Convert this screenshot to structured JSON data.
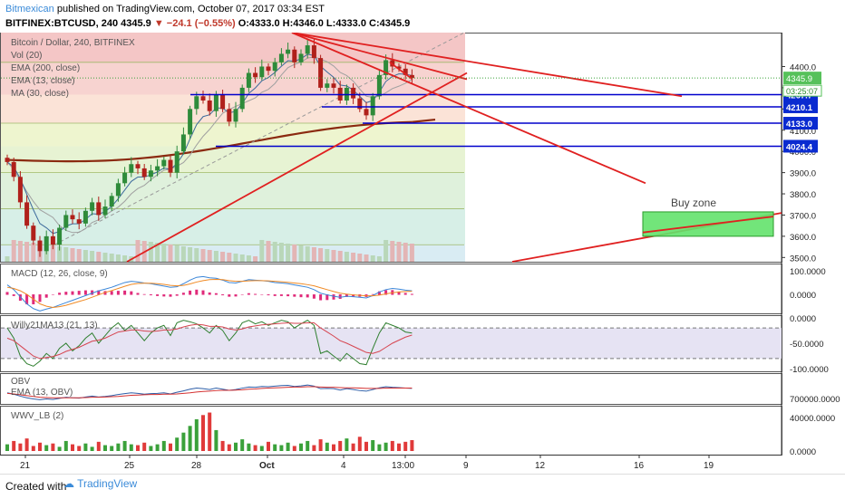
{
  "header": {
    "publisher": "Bitmexican",
    "published_text": "published on TradingView.com, October 07, 2017 03:34 EST",
    "symbol_line_prefix": "BITFINEX:BTCUSD, 240",
    "last": "4345.9",
    "change": "▼ −24.1 (−0.55%)",
    "ohlc": "O:4333.0 H:4346.0 L:4333.0 C:4345.9"
  },
  "footer": {
    "created_with": "Created with",
    "brand": "TradingView"
  },
  "colors": {
    "up": "#2e8b3a",
    "down": "#b0201b",
    "ema200": "#8b2a10",
    "ema13": "#3d6b9c",
    "ma30": "#a0a0a0",
    "trend": "#e02020",
    "level": "#0000cc",
    "buyzone": "#63e26b",
    "macd": "#3b86d8",
    "signal": "#f08a24",
    "willy": "#2f7f2f",
    "willy_ma": "#d64550",
    "obv": "#2f5fa8",
    "obv_ema": "#d43030"
  },
  "chart_data": [
    {
      "type": "candlestick",
      "panel": "price",
      "title": "Bitcoin / Dollar, 240, BITFINEX",
      "indicators": [
        "Vol (20)",
        "EMA (200, close)",
        "EMA (13, close)",
        "MA (30, close)"
      ],
      "y_ticks": [
        3500.0,
        3600.0,
        3700.0,
        3800.0,
        3900.0,
        4000.0,
        4100.0,
        4200.0,
        4300.0,
        4400.0
      ],
      "ylim": [
        3480,
        4560
      ],
      "x_ticks": [
        "21",
        "25",
        "28",
        "Oct",
        "4",
        "13:00",
        "9",
        "12",
        "16",
        "19"
      ],
      "last_price": 4345.9,
      "countdown": "03:25:07",
      "levels": [
        {
          "value": 4267.7,
          "label": "4267.7"
        },
        {
          "value": 4210.1,
          "label": "4210.1"
        },
        {
          "value": 4133.0,
          "label": "4133.0"
        },
        {
          "value": 4024.4,
          "label": "4024.4"
        }
      ],
      "annotation": "Buy zone",
      "buy_zone": {
        "low": 3600,
        "high": 3715
      },
      "closes": [
        3950,
        3880,
        3760,
        3650,
        3580,
        3530,
        3600,
        3560,
        3640,
        3700,
        3680,
        3660,
        3720,
        3760,
        3700,
        3740,
        3790,
        3850,
        3900,
        3940,
        3920,
        3880,
        3910,
        3930,
        3960,
        3900,
        4000,
        4080,
        4200,
        4260,
        4240,
        4190,
        4270,
        4200,
        4140,
        4200,
        4300,
        4370,
        4350,
        4400,
        4380,
        4420,
        4460,
        4480,
        4420,
        4460,
        4500,
        4440,
        4300,
        4320,
        4300,
        4240,
        4300,
        4250,
        4200,
        4170,
        4260,
        4360,
        4430,
        4400,
        4390,
        4360,
        4345.9
      ]
    },
    {
      "type": "line",
      "panel": "macd",
      "title": "MACD (12, 26, close, 9)",
      "y_ticks": [
        100.0,
        0.0
      ],
      "ylim": [
        -80,
        130
      ],
      "series": [
        {
          "name": "macd",
          "values": [
            40,
            20,
            -10,
            -40,
            -60,
            -70,
            -62,
            -55,
            -45,
            -35,
            -25,
            -15,
            -5,
            5,
            15,
            22,
            30,
            40,
            50,
            55,
            52,
            48,
            45,
            40,
            35,
            30,
            32,
            45,
            60,
            72,
            75,
            70,
            68,
            60,
            50,
            48,
            55,
            62,
            60,
            58,
            55,
            50,
            48,
            45,
            40,
            35,
            30,
            20,
            5,
            -2,
            -8,
            -12,
            -8,
            -10,
            -12,
            -15,
            -5,
            10,
            20,
            25,
            22,
            18,
            15
          ]
        },
        {
          "name": "signal",
          "values": [
            30,
            25,
            15,
            0,
            -20,
            -40,
            -50,
            -55,
            -52,
            -46,
            -38,
            -30,
            -22,
            -12,
            -2,
            8,
            16,
            25,
            34,
            42,
            46,
            47,
            47,
            45,
            42,
            38,
            36,
            38,
            44,
            52,
            58,
            62,
            63,
            62,
            58,
            55,
            55,
            57,
            58,
            58,
            57,
            55,
            53,
            51,
            48,
            45,
            41,
            36,
            28,
            20,
            12,
            5,
            1,
            -2,
            -4,
            -6,
            -6,
            -3,
            2,
            7,
            10,
            12,
            13
          ]
        }
      ]
    },
    {
      "type": "line",
      "panel": "willy",
      "title": "Willy21MA13 (21, 13)",
      "y_ticks": [
        0.0,
        -50.0,
        -100.0
      ],
      "ylim": [
        -105,
        5
      ],
      "series": [
        {
          "name": "willy",
          "values": [
            -20,
            -40,
            -75,
            -90,
            -95,
            -85,
            -70,
            -80,
            -60,
            -50,
            -65,
            -55,
            -40,
            -30,
            -50,
            -35,
            -20,
            -10,
            -25,
            -15,
            -30,
            -45,
            -30,
            -20,
            -15,
            -35,
            -10,
            -5,
            -8,
            -12,
            -20,
            -30,
            -15,
            -25,
            -45,
            -30,
            -10,
            -5,
            -12,
            -8,
            -15,
            -10,
            -5,
            -8,
            -20,
            -12,
            -5,
            -15,
            -70,
            -65,
            -75,
            -85,
            -70,
            -80,
            -90,
            -92,
            -60,
            -30,
            -10,
            -15,
            -20,
            -28,
            -30
          ]
        },
        {
          "name": "willy_ma",
          "values": [
            -40,
            -45,
            -55,
            -65,
            -75,
            -80,
            -78,
            -76,
            -72,
            -66,
            -62,
            -58,
            -52,
            -46,
            -44,
            -40,
            -34,
            -28,
            -26,
            -24,
            -24,
            -26,
            -27,
            -26,
            -24,
            -24,
            -22,
            -18,
            -15,
            -13,
            -14,
            -17,
            -17,
            -18,
            -22,
            -24,
            -22,
            -18,
            -16,
            -14,
            -13,
            -12,
            -11,
            -10,
            -11,
            -11,
            -10,
            -10,
            -20,
            -28,
            -36,
            -45,
            -50,
            -56,
            -62,
            -68,
            -70,
            -66,
            -58,
            -50,
            -44,
            -38,
            -34
          ]
        }
      ]
    },
    {
      "type": "line",
      "panel": "obv",
      "title": "OBV",
      "subtitle": "EMA (13, OBV)",
      "y_ticks": [
        700000.0
      ],
      "series": [
        {
          "name": "obv",
          "values": [
            0.4,
            0.35,
            0.28,
            0.22,
            0.18,
            0.15,
            0.18,
            0.16,
            0.2,
            0.24,
            0.22,
            0.21,
            0.25,
            0.28,
            0.25,
            0.27,
            0.3,
            0.34,
            0.37,
            0.4,
            0.38,
            0.35,
            0.37,
            0.38,
            0.4,
            0.36,
            0.42,
            0.47,
            0.53,
            0.57,
            0.55,
            0.52,
            0.57,
            0.53,
            0.49,
            0.52,
            0.57,
            0.61,
            0.6,
            0.63,
            0.62,
            0.64,
            0.66,
            0.67,
            0.63,
            0.65,
            0.68,
            0.64,
            0.55,
            0.56,
            0.55,
            0.5,
            0.55,
            0.52,
            0.48,
            0.46,
            0.52,
            0.58,
            0.62,
            0.6,
            0.59,
            0.57,
            0.56
          ]
        },
        {
          "name": "obv_ema",
          "values": [
            0.38,
            0.36,
            0.33,
            0.3,
            0.27,
            0.24,
            0.23,
            0.22,
            0.22,
            0.22,
            0.22,
            0.22,
            0.23,
            0.24,
            0.24,
            0.25,
            0.26,
            0.27,
            0.29,
            0.31,
            0.32,
            0.33,
            0.34,
            0.34,
            0.35,
            0.35,
            0.36,
            0.38,
            0.4,
            0.43,
            0.45,
            0.46,
            0.48,
            0.49,
            0.49,
            0.5,
            0.51,
            0.53,
            0.54,
            0.56,
            0.57,
            0.58,
            0.59,
            0.6,
            0.61,
            0.61,
            0.62,
            0.62,
            0.61,
            0.6,
            0.6,
            0.59,
            0.58,
            0.58,
            0.57,
            0.56,
            0.56,
            0.56,
            0.57,
            0.57,
            0.57,
            0.57,
            0.57
          ]
        }
      ]
    },
    {
      "type": "bar",
      "panel": "wwv",
      "title": "WWV_LB (2)",
      "y_ticks": [
        40000.0,
        0.0
      ],
      "ylim": [
        0,
        52000
      ],
      "values": [
        8000,
        12000,
        9000,
        15000,
        6000,
        10000,
        7000,
        9000,
        5000,
        12000,
        8000,
        6000,
        9000,
        5000,
        11000,
        7000,
        6000,
        9000,
        12000,
        8000,
        7000,
        10000,
        6000,
        8000,
        12000,
        9000,
        16000,
        22000,
        30000,
        38000,
        43000,
        46000,
        25000,
        12000,
        8000,
        10000,
        14000,
        9000,
        7000,
        6000,
        11000,
        8000,
        7000,
        10000,
        6000,
        9000,
        12000,
        7000,
        14000,
        10000,
        8000,
        12000,
        15000,
        9000,
        17000,
        11000,
        13000,
        8000,
        10000,
        12000,
        9000,
        11000,
        13000
      ]
    }
  ]
}
